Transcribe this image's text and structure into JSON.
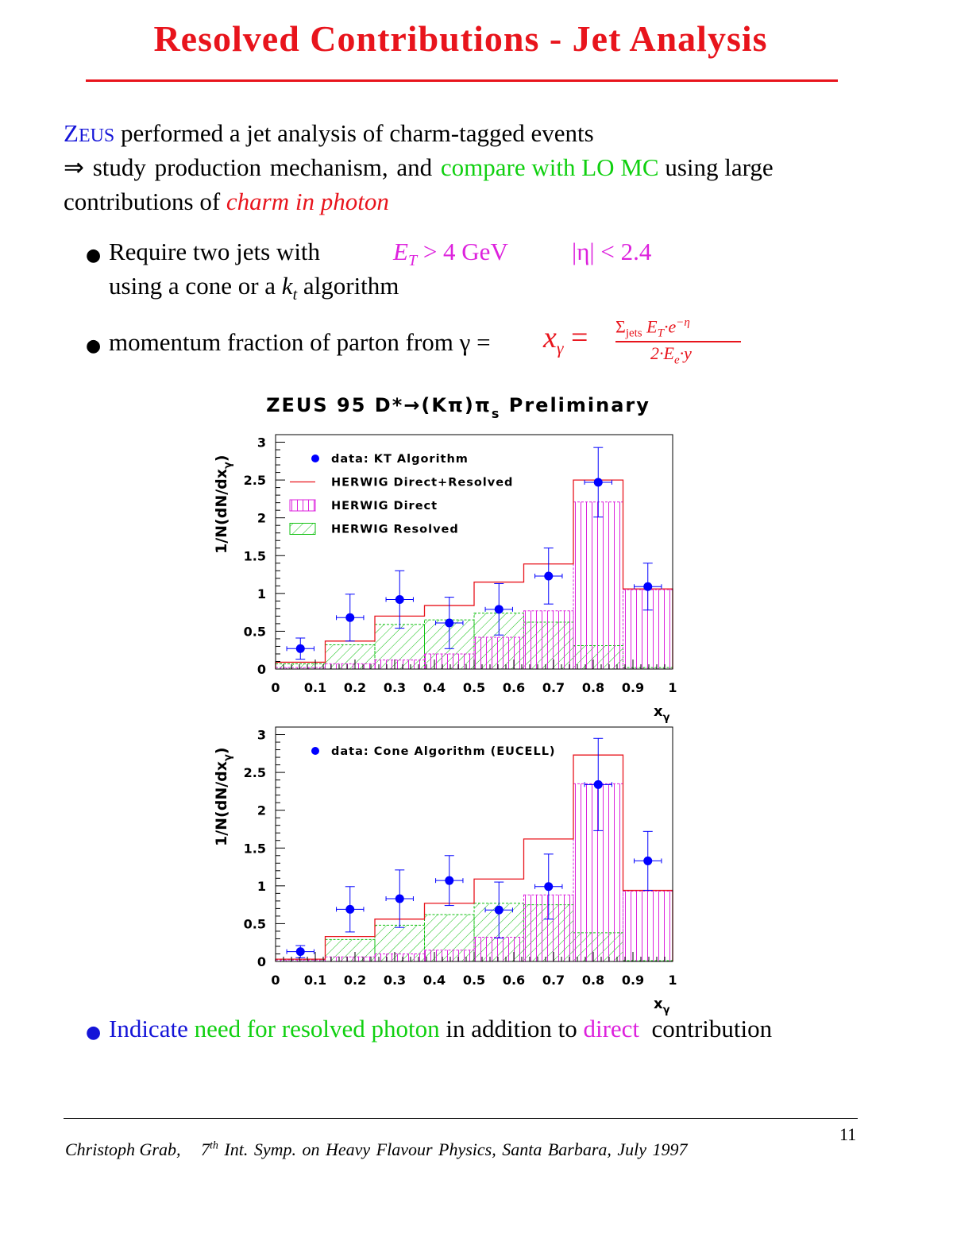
{
  "slide": {
    "title": "Resolved Contributions - Jet Analysis",
    "intro": {
      "zeus_big": "Z",
      "zeus_small": "EUS",
      "line1_rest": " performed a jet analysis of charm-tagged events",
      "arrow": "⇒",
      "line2_a": " study production mechanism, and ",
      "line2_green": "compare with LO MC",
      "line2_b": " using large",
      "line3_a": "contributions of ",
      "line3_red": "charm in photon"
    },
    "bullets": {
      "b1_text": "Require two jets with",
      "b1_cut1": "E",
      "b1_cut1_sub": "T",
      "b1_cut1_rest": " > 4 GeV",
      "b1_cut2": "|η| < 2.4",
      "b1_line2_a": "using a cone or a ",
      "b1_line2_k": "k",
      "b1_line2_sub": "t",
      "b1_line2_b": " algorithm",
      "b2_text": "momentum fraction of parton from γ = ",
      "b2_xg": "x",
      "b2_xg_sub": "γ",
      "b2_eq": " =",
      "b2_num": "Σ",
      "b2_num_sub": "jets",
      "b2_num_rest": " E",
      "b2_num_sub2": "T",
      "b2_num_rest2": "·e",
      "b2_num_sup": "−η",
      "b2_den": "2·E",
      "b2_den_sub": "e",
      "b2_den_rest": "·y",
      "b3_a": "Indicate ",
      "b3_green": "need for resolved photon",
      "b3_b": " in addition to ",
      "b3_mag": "direct",
      "b3_c": "  contribution"
    },
    "footer": {
      "author": "Christoph Grab,",
      "sup_num": "7",
      "sup_th": "th",
      "conference": " Int. Symp. on Heavy Flavour Physics, Santa Barbara, July 1997",
      "page": "11"
    }
  },
  "colors": {
    "title": "#e8141c",
    "data": "#0000ff",
    "direct_resolved": "#e8141c",
    "direct": "#dd22dd",
    "resolved": "#10c010",
    "intro_zeus": "#1515d8"
  },
  "chart_data": [
    {
      "type": "bar",
      "title": "ZEUS 95 D*→(Kπ)π",
      "title_sub": "s",
      "title_tail": " Preliminary",
      "xlabel": "x",
      "xlabel_sub": "γ",
      "ylabel": "1/N(dN/dx",
      "ylabel_sub": "γ",
      "ylabel_tail": ")",
      "xlim": [
        0,
        1
      ],
      "ylim": [
        0,
        3.1
      ],
      "xticks": [
        "0",
        "0.1",
        "0.2",
        "0.3",
        "0.4",
        "0.5",
        "0.6",
        "0.7",
        "0.8",
        "0.9",
        "1"
      ],
      "yticks": [
        "0",
        "0.5",
        "1",
        "1.5",
        "2",
        "2.5",
        "3"
      ],
      "bin_edges": [
        0,
        0.125,
        0.25,
        0.375,
        0.5,
        0.625,
        0.75,
        0.875,
        1.0
      ],
      "legend": [
        {
          "kind": "marker",
          "label": "data: KT Algorithm"
        },
        {
          "kind": "line",
          "label": "HERWIG Direct+Resolved"
        },
        {
          "kind": "hatch-v",
          "label": "HERWIG Direct"
        },
        {
          "kind": "hatch-d",
          "label": "HERWIG Resolved"
        }
      ],
      "series": [
        {
          "name": "data: KT Algorithm",
          "style": "points",
          "x": [
            0.0625,
            0.1875,
            0.3125,
            0.4375,
            0.5625,
            0.6875,
            0.8125,
            0.9375
          ],
          "y": [
            0.27,
            0.68,
            0.92,
            0.61,
            0.79,
            1.23,
            2.47,
            1.09
          ],
          "yerr": [
            0.14,
            0.31,
            0.38,
            0.34,
            0.34,
            0.37,
            0.46,
            0.31
          ]
        },
        {
          "name": "HERWIG Direct+Resolved",
          "style": "step",
          "values": [
            0.09,
            0.37,
            0.7,
            0.84,
            1.15,
            1.39,
            2.5,
            1.06
          ]
        },
        {
          "name": "HERWIG Direct",
          "style": "hatch-v",
          "values": [
            0.02,
            0.07,
            0.12,
            0.2,
            0.42,
            0.77,
            2.21,
            1.05
          ]
        },
        {
          "name": "HERWIG Resolved",
          "style": "hatch-d",
          "values": [
            0.07,
            0.32,
            0.59,
            0.65,
            0.74,
            0.62,
            0.31,
            0.02
          ]
        }
      ]
    },
    {
      "type": "bar",
      "xlabel": "x",
      "xlabel_sub": "γ",
      "ylabel": "1/N(dN/dx",
      "ylabel_sub": "γ",
      "ylabel_tail": ")",
      "xlim": [
        0,
        1
      ],
      "ylim": [
        0,
        3.1
      ],
      "xticks": [
        "0",
        "0.1",
        "0.2",
        "0.3",
        "0.4",
        "0.5",
        "0.6",
        "0.7",
        "0.8",
        "0.9",
        "1"
      ],
      "yticks": [
        "0",
        "0.5",
        "1",
        "1.5",
        "2",
        "2.5",
        "3"
      ],
      "bin_edges": [
        0,
        0.125,
        0.25,
        0.375,
        0.5,
        0.625,
        0.75,
        0.875,
        1.0
      ],
      "legend": [
        {
          "kind": "marker",
          "label": "data: Cone Algorithm (EUCELL)"
        }
      ],
      "series": [
        {
          "name": "data: Cone Algorithm (EUCELL)",
          "style": "points",
          "x": [
            0.0625,
            0.1875,
            0.3125,
            0.4375,
            0.5625,
            0.6875,
            0.8125,
            0.9375
          ],
          "y": [
            0.13,
            0.69,
            0.83,
            1.07,
            0.68,
            0.99,
            2.34,
            1.33
          ],
          "yerr": [
            0.08,
            0.3,
            0.38,
            0.33,
            0.37,
            0.43,
            0.61,
            0.39
          ]
        },
        {
          "name": "",
          "style": "step",
          "values": [
            0.03,
            0.33,
            0.56,
            0.77,
            1.09,
            1.62,
            2.73,
            0.94
          ]
        },
        {
          "name": "",
          "style": "hatch-v",
          "values": [
            0.02,
            0.06,
            0.1,
            0.15,
            0.32,
            0.88,
            2.35,
            0.93
          ]
        },
        {
          "name": "",
          "style": "hatch-d",
          "values": [
            0.02,
            0.29,
            0.48,
            0.62,
            0.77,
            0.75,
            0.38,
            0.01
          ]
        }
      ]
    }
  ]
}
